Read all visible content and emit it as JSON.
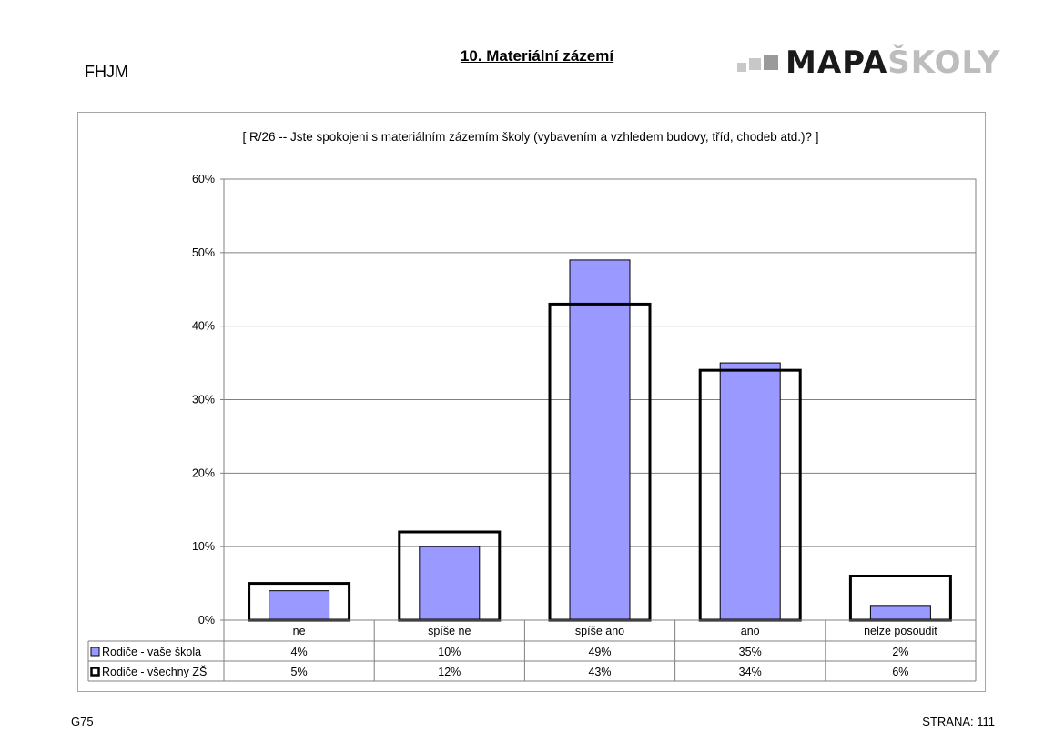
{
  "header": {
    "school_code": "FHJM",
    "title": "10. Materiální zázemí",
    "logo_dark": "MAPA",
    "logo_light": "ŠKOLY"
  },
  "footer": {
    "left": "G75",
    "right": "STRANA: 111"
  },
  "chart_data": {
    "type": "bar",
    "title": "[ R/26 -- Jste spokojeni s materiálním zázemím školy (vybavením a vzhledem budovy, tříd, chodeb atd.)? ]",
    "categories": [
      "ne",
      "spíše ne",
      "spíše ano",
      "ano",
      "nelze posoudit"
    ],
    "series": [
      {
        "name": "Rodiče - vaše škola",
        "values": [
          4,
          10,
          49,
          35,
          2
        ],
        "labels": [
          "4%",
          "10%",
          "49%",
          "35%",
          "2%"
        ],
        "color": "#9999ff"
      },
      {
        "name": "Rodiče - všechny ZŠ",
        "values": [
          5,
          12,
          43,
          34,
          6
        ],
        "labels": [
          "5%",
          "12%",
          "43%",
          "34%",
          "6%"
        ],
        "color": "#ffffff"
      }
    ],
    "ylim": [
      0,
      60
    ],
    "yticks": [
      "0%",
      "10%",
      "20%",
      "30%",
      "40%",
      "50%",
      "60%"
    ],
    "grid": true,
    "legend": "data-table"
  }
}
